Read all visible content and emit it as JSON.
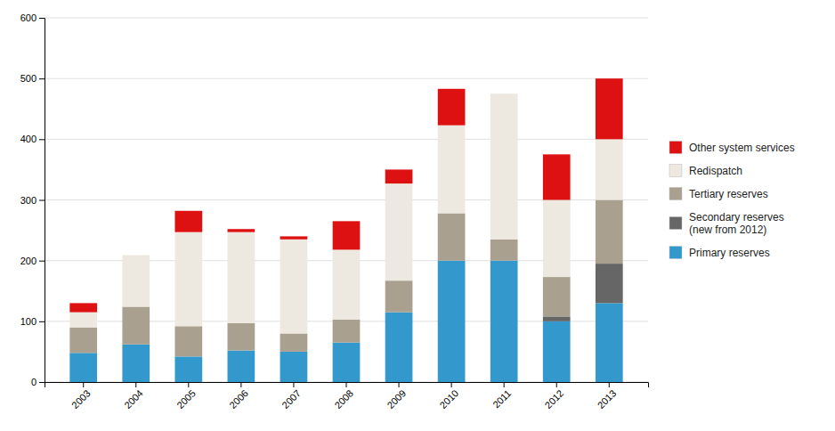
{
  "chart_data": {
    "type": "bar",
    "stacked": true,
    "grid": true,
    "legend": "right",
    "categories": [
      "2003",
      "2004",
      "2005",
      "2006",
      "2007",
      "2008",
      "2009",
      "2010",
      "2011",
      "2012",
      "2013"
    ],
    "series": [
      {
        "name": "Primary reserves",
        "color": "#3399cc",
        "values": [
          48,
          62,
          42,
          52,
          50,
          65,
          115,
          200,
          200,
          100,
          130
        ]
      },
      {
        "name": "Secondary reserves\n(new from 2012)",
        "color": "#666666",
        "values": [
          0,
          0,
          0,
          0,
          0,
          0,
          0,
          0,
          0,
          8,
          65
        ]
      },
      {
        "name": "Tertiary reserves",
        "color": "#aaa090",
        "values": [
          42,
          62,
          50,
          45,
          30,
          38,
          52,
          78,
          35,
          65,
          105
        ]
      },
      {
        "name": "Redispatch",
        "color": "#ede8e0",
        "values": [
          25,
          85,
          155,
          150,
          155,
          115,
          160,
          145,
          240,
          127,
          100
        ]
      },
      {
        "name": "Other system services",
        "color": "#dd1111",
        "values": [
          15,
          0,
          35,
          5,
          5,
          47,
          23,
          60,
          0,
          75,
          100
        ]
      }
    ],
    "ylim": [
      0,
      600
    ],
    "yticks": [
      0,
      100,
      200,
      300,
      400,
      500,
      600
    ]
  }
}
